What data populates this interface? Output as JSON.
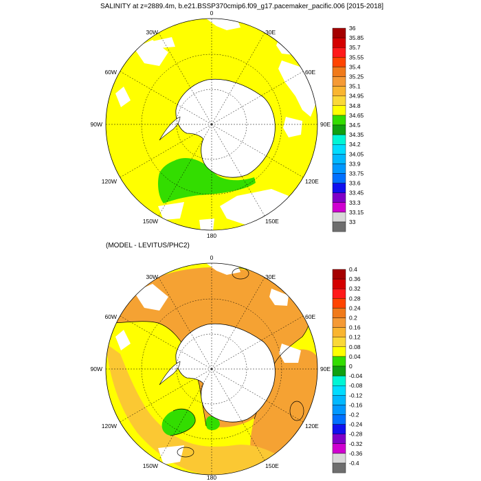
{
  "title": "SALINITY at z=2889.4m, b.e21.BSSP370cmip6.f09_g17.pacemaker_pacific.006 [2015-2018]",
  "panel2_title": "(MODEL - LEVITUS/PHC2)",
  "longitude_labels": {
    "top": "0",
    "upper_left": "30W",
    "upper_right": "30E",
    "mid_upper_left": "60W",
    "mid_upper_right": "60E",
    "left": "90W",
    "right": "90E",
    "mid_lower_left": "120W",
    "mid_lower_right": "120E",
    "lower_left": "150W",
    "lower_right": "150E",
    "bottom": "180"
  },
  "colorbar_top": {
    "labels": [
      "36",
      "35.85",
      "35.7",
      "35.55",
      "35.4",
      "35.25",
      "35.1",
      "34.95",
      "34.8",
      "34.65",
      "34.5",
      "34.35",
      "34.2",
      "34.05",
      "33.9",
      "33.75",
      "33.6",
      "33.45",
      "33.3",
      "33.15",
      "33"
    ],
    "colors": [
      "#a50000",
      "#d40000",
      "#ff1a1a",
      "#ff4400",
      "#f07a1a",
      "#f59a35",
      "#f9b530",
      "#fad838",
      "#ffff00",
      "#33dd00",
      "#10a010",
      "#00f5d5",
      "#00dcff",
      "#00b8ff",
      "#0098ff",
      "#0070ff",
      "#1010ee",
      "#8000c8",
      "#d000d0",
      "#d8d8d8",
      "#6e6e6e"
    ]
  },
  "colorbar_bottom": {
    "labels": [
      "0.4",
      "0.36",
      "0.32",
      "0.28",
      "0.24",
      "0.2",
      "0.16",
      "0.12",
      "0.08",
      "0.04",
      "0",
      "-0.04",
      "-0.08",
      "-0.12",
      "-0.16",
      "-0.2",
      "-0.24",
      "-0.28",
      "-0.32",
      "-0.36",
      "-0.4"
    ],
    "colors": [
      "#a50000",
      "#d40000",
      "#ff1a1a",
      "#ff4400",
      "#f07a1a",
      "#f59a35",
      "#f9b530",
      "#fad838",
      "#ffff00",
      "#33dd00",
      "#10a010",
      "#00f5d5",
      "#00dcff",
      "#00b8ff",
      "#0098ff",
      "#0070ff",
      "#1010ee",
      "#8000c8",
      "#d000d0",
      "#d8d8d8",
      "#6e6e6e"
    ]
  },
  "palette": {
    "salinity_main": "#ffff00",
    "salinity_low": "#33dd00",
    "anomaly_orange": "#f5a233",
    "anomaly_light_orange": "#fbc833",
    "anomaly_yellow": "#ffff00",
    "anomaly_green": "#33dd00"
  }
}
